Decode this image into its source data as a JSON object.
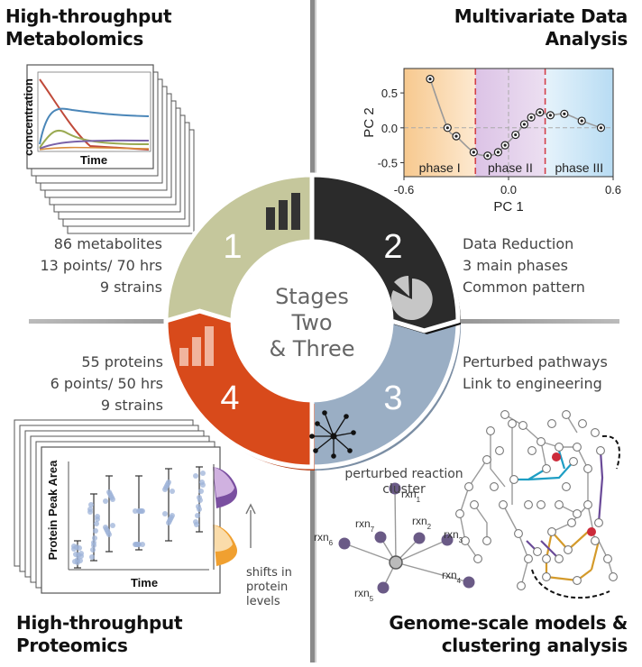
{
  "quadrants": {
    "top_left": {
      "title": [
        "High-throughput",
        "Metabolomics"
      ],
      "stats": [
        "86 metabolites",
        "13 points/ 70 hrs",
        "9 strains"
      ],
      "plot_ylabel": "concentration",
      "plot_xlabel": "Time"
    },
    "top_right": {
      "title": [
        "Multivariate Data",
        "Analysis"
      ],
      "stats": [
        "Data Reduction",
        "3 main phases",
        "Common pattern"
      ]
    },
    "bottom_left": {
      "title": [
        "High-throughput",
        "Proteomics"
      ],
      "stats": [
        "55 proteins",
        "6 points/ 50 hrs",
        "9 strains"
      ],
      "plot_ylabel": "Protein Peak Area",
      "plot_xlabel": "Time",
      "shift_note": [
        "shifts in",
        "protein",
        "levels"
      ]
    },
    "bottom_right": {
      "title": [
        "Genome-scale models &",
        "clustering analysis"
      ],
      "stats": [
        "Perturbed pathways",
        "Link to engineering"
      ],
      "cluster_label": [
        "perturbed reaction",
        "cluster"
      ],
      "rxn_labels": [
        "rxn",
        "rxn",
        "rxn",
        "rxn",
        "rxn",
        "rxn",
        "rxn"
      ],
      "rxn_subscripts": [
        "1",
        "2",
        "3",
        "4",
        "5",
        "6",
        "7"
      ]
    }
  },
  "cycle": {
    "center_text": [
      "Stages",
      "Two",
      "& Three"
    ],
    "segments": [
      {
        "number": "1",
        "color": "#c5c79c"
      },
      {
        "number": "2",
        "color": "#2b2b2b"
      },
      {
        "number": "3",
        "color": "#9aaec4"
      },
      {
        "number": "4",
        "color": "#d84a1b"
      }
    ]
  },
  "chart_data": {
    "type": "scatter",
    "xlabel": "PC 1",
    "ylabel": "PC 2",
    "xlim": [
      -0.6,
      0.6
    ],
    "ylim": [
      -0.7,
      0.85
    ],
    "xticks": [
      "-0.6",
      "0.0",
      "0.6"
    ],
    "yticks": [
      "0.5",
      "0.0",
      "-0.5"
    ],
    "xtick_values": [
      -0.6,
      0.0,
      0.6
    ],
    "ytick_values": [
      0.5,
      0.0,
      -0.5
    ],
    "phases": [
      {
        "label": "phase I",
        "from": -0.6,
        "to": -0.19,
        "color": "#fbe0c0"
      },
      {
        "label": "phase II",
        "from": -0.19,
        "to": 0.21,
        "color": "#e3d2ea"
      },
      {
        "label": "phase III",
        "from": 0.21,
        "to": 0.6,
        "color": "#d6eaf7"
      }
    ],
    "points": [
      {
        "x": -0.45,
        "y": 0.7
      },
      {
        "x": -0.35,
        "y": 0.0
      },
      {
        "x": -0.3,
        "y": -0.12
      },
      {
        "x": -0.2,
        "y": -0.35
      },
      {
        "x": -0.12,
        "y": -0.4
      },
      {
        "x": -0.06,
        "y": -0.35
      },
      {
        "x": -0.02,
        "y": -0.25
      },
      {
        "x": 0.04,
        "y": -0.1
      },
      {
        "x": 0.09,
        "y": 0.05
      },
      {
        "x": 0.13,
        "y": 0.15
      },
      {
        "x": 0.18,
        "y": 0.22
      },
      {
        "x": 0.24,
        "y": 0.18
      },
      {
        "x": 0.32,
        "y": 0.2
      },
      {
        "x": 0.42,
        "y": 0.1
      },
      {
        "x": 0.53,
        "y": 0.0
      }
    ]
  },
  "colors": {
    "red_line": "#c04a3a",
    "blue_line": "#4a86b8",
    "green_line": "#9aaa52",
    "purple_line": "#7a62a8",
    "orange_line": "#d88a3a",
    "node_purple": "#6a5a86",
    "network_teal": "#1e9ec4",
    "network_orange": "#d49a2a",
    "network_purple": "#6a4a98"
  }
}
